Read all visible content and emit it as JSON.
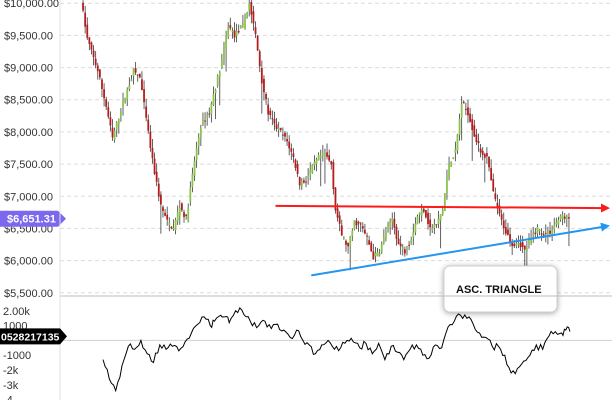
{
  "chart_data": [
    {
      "type": "candlestick",
      "title": "",
      "xlabel": "",
      "ylabel": "",
      "ylim": [
        5450,
        10050
      ],
      "y_ticks": [
        "$5,500.00",
        "$6,000.00",
        "$6,500.00",
        "$7,000.00",
        "$7,500.00",
        "$8,000.00",
        "$8,500.00",
        "$9,000.00",
        "$9,500.00",
        "$10,000.00"
      ],
      "tick_values": [
        5500,
        6000,
        6500,
        7000,
        7500,
        8000,
        8500,
        9000,
        9500,
        10000
      ],
      "grid": true,
      "up_color": "#8bc34a",
      "down_color": "#b71c1c",
      "current_price": {
        "label": "$6,651.31",
        "value": 6651.31,
        "color": "#7b68ee"
      },
      "path": [
        [
          0,
          10050
        ],
        [
          3,
          9450
        ],
        [
          8,
          8950
        ],
        [
          12,
          8400
        ],
        [
          15,
          7900
        ],
        [
          20,
          8450
        ],
        [
          25,
          8950
        ],
        [
          28,
          8850
        ],
        [
          31,
          8200
        ],
        [
          34,
          7550
        ],
        [
          38,
          6850
        ],
        [
          41,
          6600
        ],
        [
          44,
          6500
        ],
        [
          47,
          6850
        ],
        [
          50,
          6650
        ],
        [
          54,
          7550
        ],
        [
          57,
          8100
        ],
        [
          61,
          8300
        ],
        [
          64,
          8700
        ],
        [
          67,
          9100
        ],
        [
          70,
          9650
        ],
        [
          73,
          9500
        ],
        [
          77,
          9650
        ],
        [
          80,
          10000
        ],
        [
          83,
          9500
        ],
        [
          86,
          8800
        ],
        [
          89,
          8300
        ],
        [
          92,
          8100
        ],
        [
          95,
          8000
        ],
        [
          98,
          7850
        ],
        [
          101,
          7600
        ],
        [
          104,
          7200
        ],
        [
          107,
          7250
        ],
        [
          110,
          7450
        ],
        [
          113,
          7600
        ],
        [
          116,
          7650
        ],
        [
          119,
          7500
        ],
        [
          121,
          6800
        ],
        [
          124,
          6400
        ],
        [
          127,
          6200
        ],
        [
          130,
          6600
        ],
        [
          133,
          6550
        ],
        [
          136,
          6350
        ],
        [
          139,
          6050
        ],
        [
          142,
          6150
        ],
        [
          145,
          6450
        ],
        [
          148,
          6650
        ],
        [
          151,
          6250
        ],
        [
          154,
          6150
        ],
        [
          157,
          6350
        ],
        [
          160,
          6700
        ],
        [
          163,
          6800
        ],
        [
          166,
          6500
        ],
        [
          169,
          6550
        ],
        [
          172,
          6800
        ],
        [
          175,
          7500
        ],
        [
          178,
          7700
        ],
        [
          181,
          8450
        ],
        [
          184,
          8300
        ],
        [
          187,
          7950
        ],
        [
          190,
          7700
        ],
        [
          193,
          7600
        ],
        [
          196,
          7050
        ],
        [
          199,
          6700
        ],
        [
          202,
          6450
        ],
        [
          205,
          6250
        ],
        [
          208,
          6300
        ],
        [
          211,
          6150
        ],
        [
          214,
          6350
        ],
        [
          217,
          6500
        ],
        [
          220,
          6400
        ],
        [
          223,
          6450
        ],
        [
          226,
          6600
        ],
        [
          229,
          6700
        ],
        [
          232,
          6650
        ]
      ],
      "lines": [
        {
          "name": "Resistance",
          "from": [
            92,
            6850
          ],
          "to": [
            232,
            6820
          ],
          "color": "#ff1a1a"
        },
        {
          "name": "Support",
          "from": [
            109,
            5770
          ],
          "to": [
            232,
            6440
          ],
          "color": "#2196f3"
        }
      ],
      "annotations": [
        {
          "text": "ASC. TRIANGLE"
        }
      ]
    },
    {
      "type": "line",
      "title": "",
      "ylim": [
        -4300,
        2600
      ],
      "y_ticks": [
        "2.00k",
        "1000",
        "-1000",
        "-2k",
        "-3k",
        "-4"
      ],
      "tick_values": [
        2000,
        1000,
        -1000,
        -2000,
        -3000,
        -4000
      ],
      "current_value_label": "0528217135",
      "series": [
        {
          "color": "#000000",
          "values": [
            [
              10,
              -1300
            ],
            [
              13,
              -2600
            ],
            [
              16,
              -3400
            ],
            [
              19,
              -1700
            ],
            [
              22,
              -400
            ],
            [
              25,
              -600
            ],
            [
              28,
              0
            ],
            [
              31,
              -900
            ],
            [
              34,
              -1500
            ],
            [
              37,
              -300
            ],
            [
              40,
              -600
            ],
            [
              43,
              -400
            ],
            [
              46,
              -700
            ],
            [
              49,
              -100
            ],
            [
              52,
              500
            ],
            [
              55,
              1100
            ],
            [
              58,
              1600
            ],
            [
              61,
              1000
            ],
            [
              63,
              1300
            ],
            [
              66,
              1700
            ],
            [
              68,
              1600
            ],
            [
              70,
              1200
            ],
            [
              72,
              1700
            ],
            [
              75,
              2200
            ],
            [
              78,
              1600
            ],
            [
              81,
              1000
            ],
            [
              84,
              1000
            ],
            [
              87,
              1300
            ],
            [
              90,
              800
            ],
            [
              93,
              1100
            ],
            [
              96,
              700
            ],
            [
              99,
              200
            ],
            [
              102,
              700
            ],
            [
              105,
              0
            ],
            [
              108,
              -300
            ],
            [
              111,
              -900
            ],
            [
              114,
              -300
            ],
            [
              117,
              0
            ],
            [
              120,
              -600
            ],
            [
              123,
              -500
            ],
            [
              126,
              0
            ],
            [
              129,
              -100
            ],
            [
              132,
              -500
            ],
            [
              135,
              -200
            ],
            [
              138,
              -900
            ],
            [
              141,
              -200
            ],
            [
              144,
              -1300
            ],
            [
              147,
              -400
            ],
            [
              150,
              -800
            ],
            [
              153,
              -1300
            ],
            [
              156,
              -600
            ],
            [
              159,
              -300
            ],
            [
              162,
              -1000
            ],
            [
              165,
              -1200
            ],
            [
              168,
              -300
            ],
            [
              171,
              -500
            ],
            [
              174,
              900
            ],
            [
              177,
              1300
            ],
            [
              180,
              1700
            ],
            [
              183,
              1500
            ],
            [
              186,
              1100
            ],
            [
              189,
              500
            ],
            [
              192,
              200
            ],
            [
              195,
              -400
            ],
            [
              198,
              -400
            ],
            [
              201,
              -1000
            ],
            [
              204,
              -2200
            ],
            [
              207,
              -1900
            ],
            [
              210,
              -1400
            ],
            [
              213,
              -1000
            ],
            [
              216,
              -300
            ],
            [
              219,
              -600
            ],
            [
              222,
              300
            ],
            [
              225,
              600
            ],
            [
              228,
              500
            ],
            [
              230,
              700
            ],
            [
              232,
              600
            ]
          ]
        }
      ]
    }
  ]
}
